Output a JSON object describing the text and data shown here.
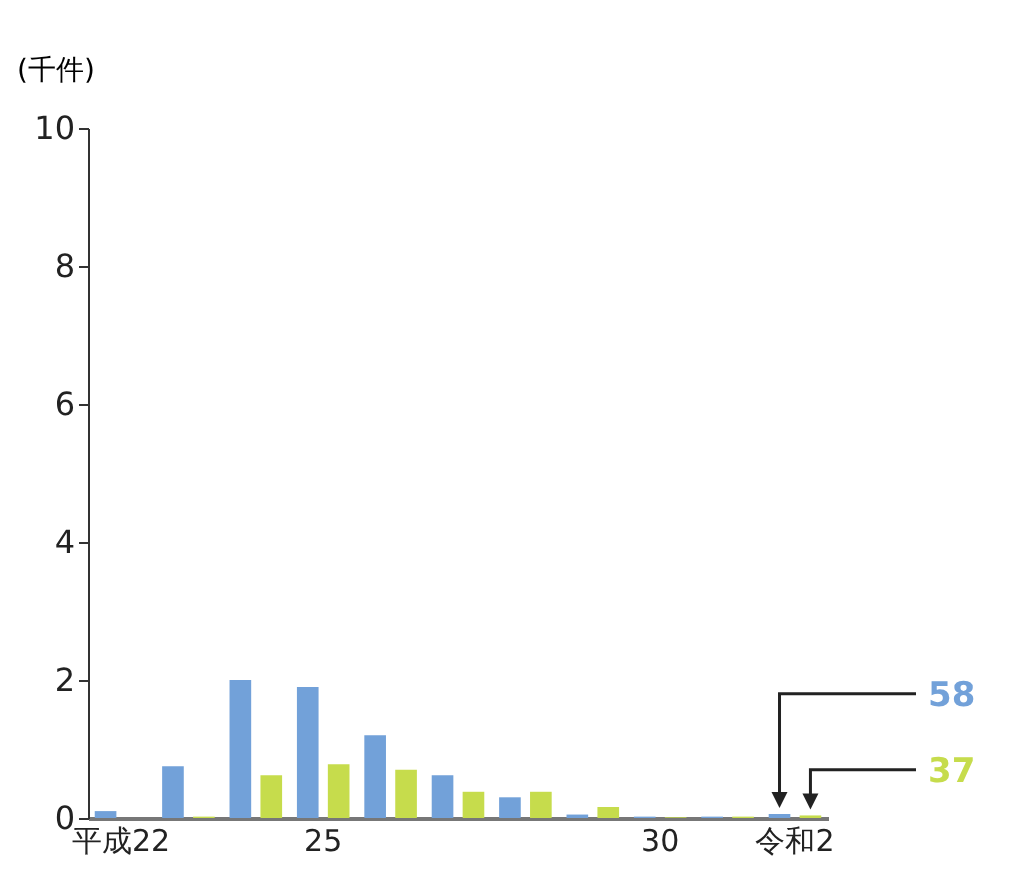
{
  "chart_data": {
    "type": "bar",
    "ylabel": "(千件)",
    "categories": [
      "平成22",
      null,
      null,
      "25",
      null,
      null,
      null,
      null,
      "30",
      null,
      "令和2"
    ],
    "series": [
      {
        "color": "#72a1d9",
        "values": [
          0.1,
          0.75,
          2.0,
          1.9,
          1.2,
          0.62,
          0.3,
          0.05,
          0.02,
          0.02,
          0.058
        ]
      },
      {
        "color": "#c6dc4c",
        "values": [
          0,
          0.02,
          0.62,
          0.78,
          0.7,
          0.38,
          0.38,
          0.16,
          0.01,
          0.02,
          0.037
        ]
      }
    ],
    "ylim": [
      0,
      10
    ],
    "yticks": [
      0,
      2,
      4,
      6,
      8,
      10
    ],
    "grid": false,
    "annotations": [
      "58",
      "37"
    ]
  }
}
